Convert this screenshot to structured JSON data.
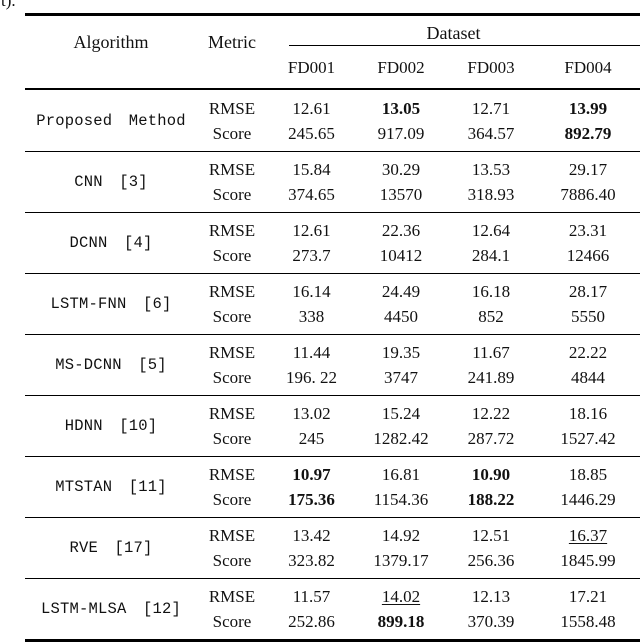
{
  "page": {
    "corner_fragment": "t)."
  },
  "table": {
    "header": {
      "algorithm": "Algorithm",
      "metric": "Metric",
      "dataset_group": "Dataset",
      "datasets": [
        "FD001",
        "FD002",
        "FD003",
        "FD004"
      ]
    },
    "metric_labels": [
      "RMSE",
      "Score"
    ],
    "rows": [
      {
        "algorithm": "Proposed Method",
        "rmse": [
          {
            "v": "12.61"
          },
          {
            "v": "13.05",
            "bold": true
          },
          {
            "v": "12.71"
          },
          {
            "v": "13.99",
            "bold": true
          }
        ],
        "score": [
          {
            "v": "245.65"
          },
          {
            "v": "917.09"
          },
          {
            "v": "364.57"
          },
          {
            "v": "892.79",
            "bold": true
          }
        ]
      },
      {
        "algorithm": "CNN [3]",
        "rmse": [
          {
            "v": "15.84"
          },
          {
            "v": "30.29"
          },
          {
            "v": "13.53"
          },
          {
            "v": "29.17"
          }
        ],
        "score": [
          {
            "v": "374.65"
          },
          {
            "v": "13570"
          },
          {
            "v": "318.93"
          },
          {
            "v": "7886.40"
          }
        ]
      },
      {
        "algorithm": "DCNN [4]",
        "rmse": [
          {
            "v": "12.61"
          },
          {
            "v": "22.36"
          },
          {
            "v": "12.64"
          },
          {
            "v": "23.31"
          }
        ],
        "score": [
          {
            "v": "273.7"
          },
          {
            "v": "10412"
          },
          {
            "v": "284.1"
          },
          {
            "v": "12466"
          }
        ]
      },
      {
        "algorithm": "LSTM-FNN [6]",
        "rmse": [
          {
            "v": "16.14"
          },
          {
            "v": "24.49"
          },
          {
            "v": "16.18"
          },
          {
            "v": "28.17"
          }
        ],
        "score": [
          {
            "v": "338"
          },
          {
            "v": "4450"
          },
          {
            "v": "852"
          },
          {
            "v": "5550"
          }
        ]
      },
      {
        "algorithm": "MS-DCNN [5]",
        "rmse": [
          {
            "v": "11.44"
          },
          {
            "v": "19.35"
          },
          {
            "v": "11.67"
          },
          {
            "v": "22.22"
          }
        ],
        "score": [
          {
            "v": "196. 22"
          },
          {
            "v": "3747"
          },
          {
            "v": "241.89"
          },
          {
            "v": "4844"
          }
        ]
      },
      {
        "algorithm": "HDNN [10]",
        "rmse": [
          {
            "v": "13.02"
          },
          {
            "v": "15.24"
          },
          {
            "v": "12.22"
          },
          {
            "v": "18.16"
          }
        ],
        "score": [
          {
            "v": "245"
          },
          {
            "v": "1282.42"
          },
          {
            "v": "287.72"
          },
          {
            "v": "1527.42"
          }
        ]
      },
      {
        "algorithm": "MTSTAN [11]",
        "rmse": [
          {
            "v": "10.97",
            "bold": true
          },
          {
            "v": "16.81"
          },
          {
            "v": "10.90",
            "bold": true
          },
          {
            "v": "18.85"
          }
        ],
        "score": [
          {
            "v": "175.36",
            "bold": true
          },
          {
            "v": "1154.36"
          },
          {
            "v": "188.22",
            "bold": true
          },
          {
            "v": "1446.29"
          }
        ]
      },
      {
        "algorithm": "RVE [17]",
        "rmse": [
          {
            "v": "13.42"
          },
          {
            "v": "14.92"
          },
          {
            "v": "12.51"
          },
          {
            "v": "16.37",
            "underline": true
          }
        ],
        "score": [
          {
            "v": "323.82"
          },
          {
            "v": "1379.17"
          },
          {
            "v": "256.36"
          },
          {
            "v": "1845.99"
          }
        ]
      },
      {
        "algorithm": "LSTM-MLSA [12]",
        "rmse": [
          {
            "v": "11.57"
          },
          {
            "v": "14.02",
            "underline": true
          },
          {
            "v": "12.13"
          },
          {
            "v": "17.21"
          }
        ],
        "score": [
          {
            "v": "252.86"
          },
          {
            "v": "899.18",
            "bold": true
          },
          {
            "v": "370.39"
          },
          {
            "v": "1558.48"
          }
        ]
      }
    ],
    "colors": {
      "text": "#111111",
      "rule": "#000000",
      "background": "#ffffff"
    }
  }
}
